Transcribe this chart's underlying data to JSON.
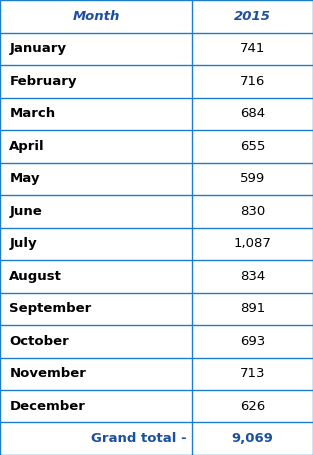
{
  "header": [
    "Month",
    "2015"
  ],
  "rows": [
    [
      "January",
      "741"
    ],
    [
      "February",
      "716"
    ],
    [
      "March",
      "684"
    ],
    [
      "April",
      "655"
    ],
    [
      "May",
      "599"
    ],
    [
      "June",
      "830"
    ],
    [
      "July",
      "1,087"
    ],
    [
      "August",
      "834"
    ],
    [
      "September",
      "891"
    ],
    [
      "October",
      "693"
    ],
    [
      "November",
      "713"
    ],
    [
      "December",
      "626"
    ]
  ],
  "footer": [
    "Grand total -",
    "9,069"
  ],
  "header_text_color": "#1c4fa0",
  "row_text_color": "#000000",
  "footer_text_color": "#1c4fa0",
  "border_color": "#1c7ec8",
  "col_split": 0.615,
  "fig_width": 3.13,
  "fig_height": 4.55,
  "dpi": 100,
  "fontsize": 9.5,
  "lw": 1.0
}
